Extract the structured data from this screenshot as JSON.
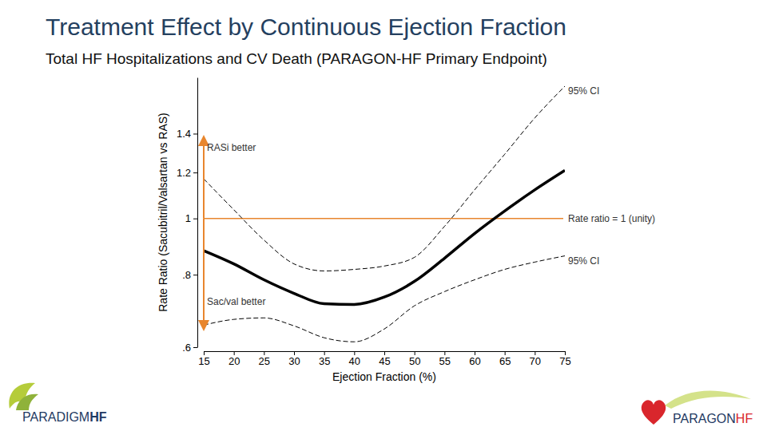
{
  "chart_data": {
    "type": "line",
    "title": "Treatment Effect by Continuous Ejection Fraction",
    "subtitle": "Total HF Hospitalizations and CV Death (PARAGON-HF Primary Endpoint)",
    "x_label": "Ejection Fraction (%)",
    "y_label": "Rate Ratio (Sacubitril/Valsartan vs RAS)",
    "x": [
      15,
      20,
      25,
      30,
      35,
      40,
      45,
      50,
      55,
      60,
      65,
      70,
      75
    ],
    "series": [
      {
        "name": "95% CI",
        "color": "#000000",
        "line_style": "dashed",
        "values": [
          1.17,
          1.035,
          0.918,
          0.835,
          0.812,
          0.817,
          0.828,
          0.857,
          0.969,
          1.12,
          1.29,
          1.49,
          1.69
        ]
      },
      {
        "color": "#000000",
        "line_style": "solid",
        "values": [
          0.88,
          0.835,
          0.784,
          0.743,
          0.713,
          0.711,
          0.732,
          0.779,
          0.854,
          0.942,
          1.03,
          1.12,
          1.21
        ]
      },
      {
        "name": "95% CI",
        "color": "#000000",
        "line_style": "dashed",
        "values": [
          0.655,
          0.67,
          0.674,
          0.653,
          0.623,
          0.613,
          0.645,
          0.707,
          0.748,
          0.784,
          0.817,
          0.841,
          0.862
        ]
      }
    ],
    "xlim": [
      15,
      75
    ],
    "xticks": [
      15,
      20,
      25,
      30,
      35,
      40,
      45,
      50,
      55,
      60,
      65,
      70,
      75
    ],
    "ylim": [
      0.6,
      1.75
    ],
    "yticks": [
      {
        "value": 0.6,
        "label": ".6"
      },
      {
        "value": 0.8,
        "label": ".8"
      },
      1,
      1.2,
      1.4
    ],
    "log": "y",
    "grid": false,
    "reference_line": {
      "y": 1,
      "label": "Rate ratio = 1 (unity)",
      "color": "#e8862e"
    },
    "annotations": [
      "RASi better",
      "Sac/val better"
    ],
    "logos": [
      [
        "PARADIGM",
        "HF"
      ],
      [
        "PARAGON",
        "HF"
      ]
    ]
  }
}
